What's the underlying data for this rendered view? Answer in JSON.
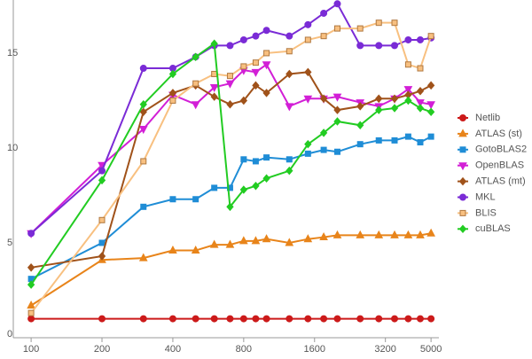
{
  "chart_data": {
    "type": "line",
    "xscale": "log",
    "grid": false,
    "legend": "right",
    "x": [
      100,
      200,
      300,
      400,
      500,
      600,
      700,
      800,
      900,
      1000,
      1250,
      1500,
      1750,
      2000,
      2500,
      3000,
      3500,
      4000,
      4500,
      5000
    ],
    "xlim": [
      84,
      5400
    ],
    "xticks": [
      100,
      200,
      400,
      800,
      1600,
      3200,
      5000
    ],
    "ylim": [
      0,
      17.8
    ],
    "yticks": [
      0,
      5,
      10,
      15
    ],
    "series": [
      {
        "name": "Netlib",
        "color": "#cc1a1a",
        "marker": "circle",
        "values": [
          1,
          1,
          1,
          1,
          1,
          1,
          1,
          1,
          1,
          1,
          1,
          1,
          1,
          1,
          1,
          1,
          1,
          1,
          1,
          1
        ]
      },
      {
        "name": "ATLAS (st)",
        "color": "#e8841a",
        "marker": "triangle-up",
        "values": [
          1.7,
          4.1,
          4.2,
          4.6,
          4.6,
          4.9,
          4.9,
          5.1,
          5.1,
          5.2,
          5.0,
          5.2,
          5.3,
          5.4,
          5.4,
          5.4,
          5.4,
          5.4,
          5.4,
          5.5
        ]
      },
      {
        "name": "GotoBLAS2",
        "color": "#1f8dd6",
        "marker": "square",
        "values": [
          3.1,
          5.0,
          6.9,
          7.3,
          7.3,
          7.9,
          7.9,
          9.4,
          9.3,
          9.5,
          9.4,
          9.7,
          9.9,
          9.8,
          10.2,
          10.4,
          10.4,
          10.6,
          10.3,
          10.6
        ]
      },
      {
        "name": "OpenBLAS",
        "color": "#d21fd6",
        "marker": "triangle-down",
        "values": [
          5.5,
          9.1,
          11.0,
          12.8,
          12.3,
          13.2,
          13.4,
          14.1,
          14.0,
          14.4,
          12.2,
          12.6,
          12.6,
          12.7,
          12.4,
          12.2,
          12.6,
          13.1,
          12.4,
          12.3
        ]
      },
      {
        "name": "ATLAS (mt)",
        "color": "#a0521a",
        "marker": "diamond",
        "values": [
          3.7,
          4.3,
          11.9,
          12.9,
          13.3,
          12.7,
          12.3,
          12.5,
          13.3,
          12.9,
          13.9,
          14.0,
          12.6,
          12.0,
          12.2,
          12.6,
          12.6,
          12.8,
          13.0,
          13.3
        ]
      },
      {
        "name": "MKL",
        "color": "#7a2bd6",
        "marker": "circle",
        "values": [
          5.5,
          8.8,
          14.2,
          14.2,
          14.8,
          15.4,
          15.4,
          15.7,
          15.9,
          16.2,
          15.9,
          16.5,
          17.1,
          17.6,
          15.4,
          15.4,
          15.4,
          15.7,
          15.7,
          15.8
        ]
      },
      {
        "name": "BLIS",
        "color": "#f8c080",
        "marker": "square-outline",
        "values": [
          1.3,
          6.2,
          9.3,
          12.5,
          13.4,
          13.9,
          13.8,
          14.3,
          14.5,
          15.0,
          15.1,
          15.7,
          15.9,
          16.3,
          16.3,
          16.6,
          16.6,
          14.4,
          14.2,
          15.9
        ]
      },
      {
        "name": "cuBLAS",
        "color": "#22cc22",
        "marker": "diamond",
        "values": [
          2.8,
          8.3,
          12.3,
          13.9,
          14.8,
          15.5,
          6.9,
          7.8,
          8.0,
          8.4,
          8.8,
          10.2,
          10.8,
          11.4,
          11.2,
          12.0,
          12.1,
          12.5,
          12.1,
          11.9
        ]
      }
    ]
  }
}
